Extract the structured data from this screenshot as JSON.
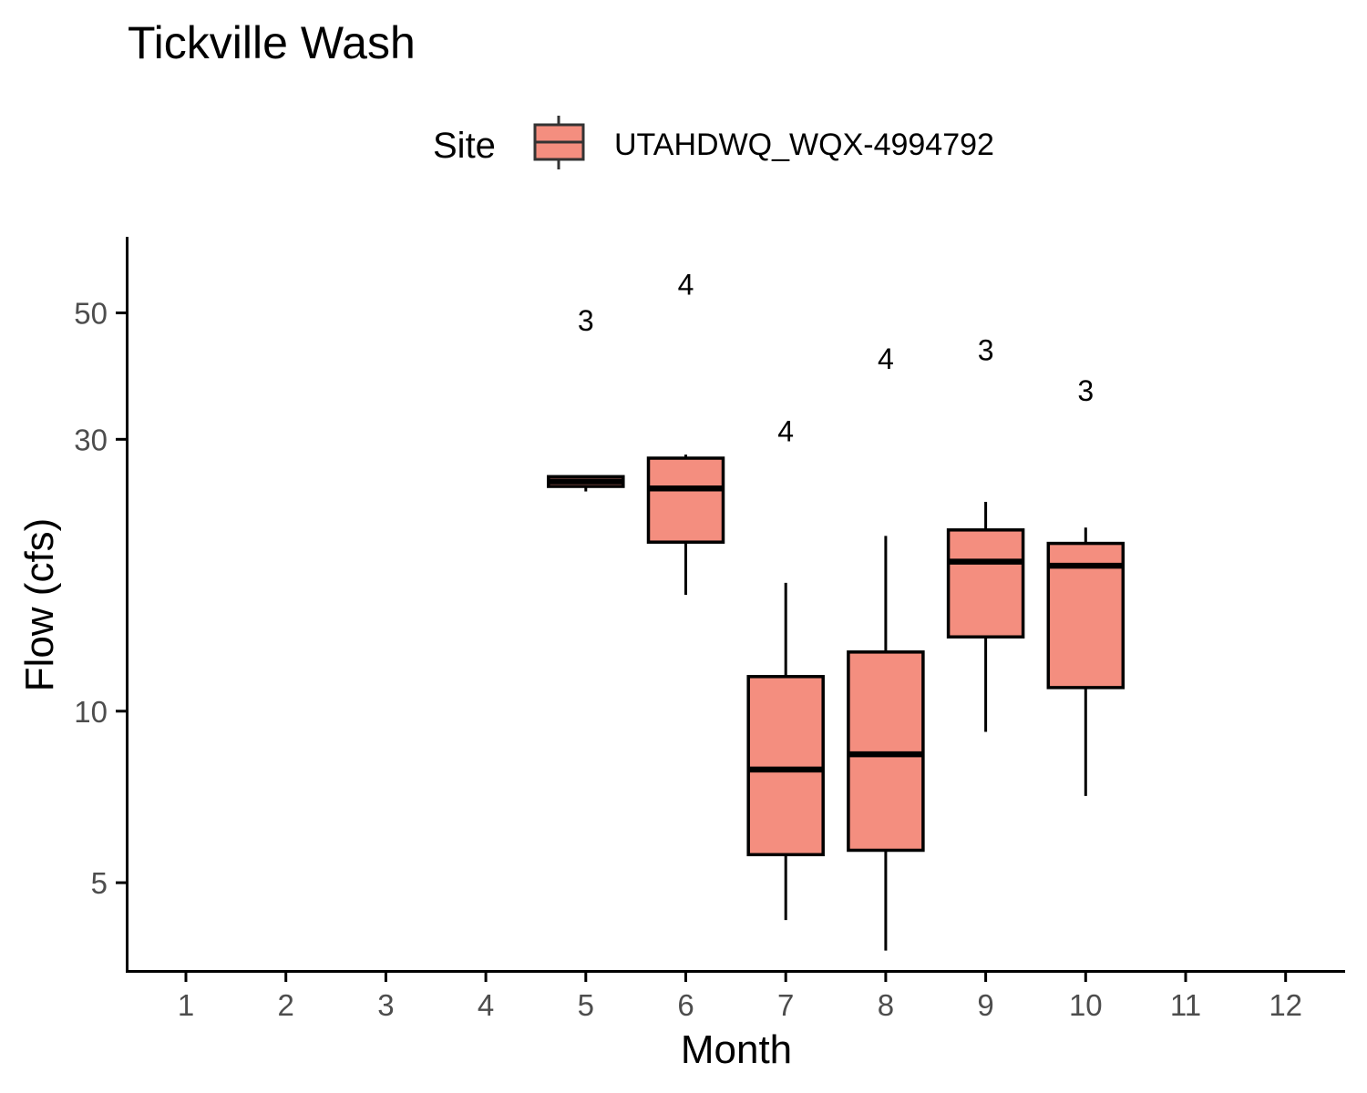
{
  "chart_data": {
    "type": "boxplot",
    "title": "Tickville Wash",
    "xlabel": "Month",
    "ylabel": "Flow (cfs)",
    "y_scale": "log",
    "ylim": [
      3.5,
      68
    ],
    "y_ticks": [
      5,
      10,
      30,
      50
    ],
    "x_categories": [
      "1",
      "2",
      "3",
      "4",
      "5",
      "6",
      "7",
      "8",
      "9",
      "10",
      "11",
      "12"
    ],
    "legend": {
      "title": "Site",
      "position": "top",
      "entries": [
        {
          "name": "UTAHDWQ_WQX-4994792",
          "fill": "#F48E7F"
        }
      ]
    },
    "series": [
      {
        "name": "UTAHDWQ_WQX-4994792",
        "boxes": [
          {
            "month": 5,
            "min": 24.3,
            "q1": 24.8,
            "median": 25.3,
            "q3": 25.8,
            "max": 25.8,
            "n": "3",
            "label_y": 48.5
          },
          {
            "month": 6,
            "min": 16.0,
            "q1": 19.8,
            "median": 24.6,
            "q3": 27.8,
            "max": 28.2,
            "n": "4",
            "label_y": 56.0
          },
          {
            "month": 7,
            "min": 4.3,
            "q1": 5.6,
            "median": 7.9,
            "q3": 11.5,
            "max": 16.8,
            "n": "4",
            "label_y": 31.0
          },
          {
            "month": 8,
            "min": 3.8,
            "q1": 5.7,
            "median": 8.4,
            "q3": 12.7,
            "max": 20.3,
            "n": "4",
            "label_y": 41.5
          },
          {
            "month": 9,
            "min": 9.2,
            "q1": 13.5,
            "median": 18.3,
            "q3": 20.8,
            "max": 23.3,
            "n": "3",
            "label_y": 43.0
          },
          {
            "month": 10,
            "min": 7.1,
            "q1": 11.0,
            "median": 18.0,
            "q3": 19.7,
            "max": 21.0,
            "n": "3",
            "label_y": 36.5
          }
        ]
      }
    ]
  },
  "colors": {
    "box_fill": "#F48E7F",
    "box_stroke": "#000000",
    "axis": "#000000",
    "tick_label": "#4d4d4d"
  }
}
